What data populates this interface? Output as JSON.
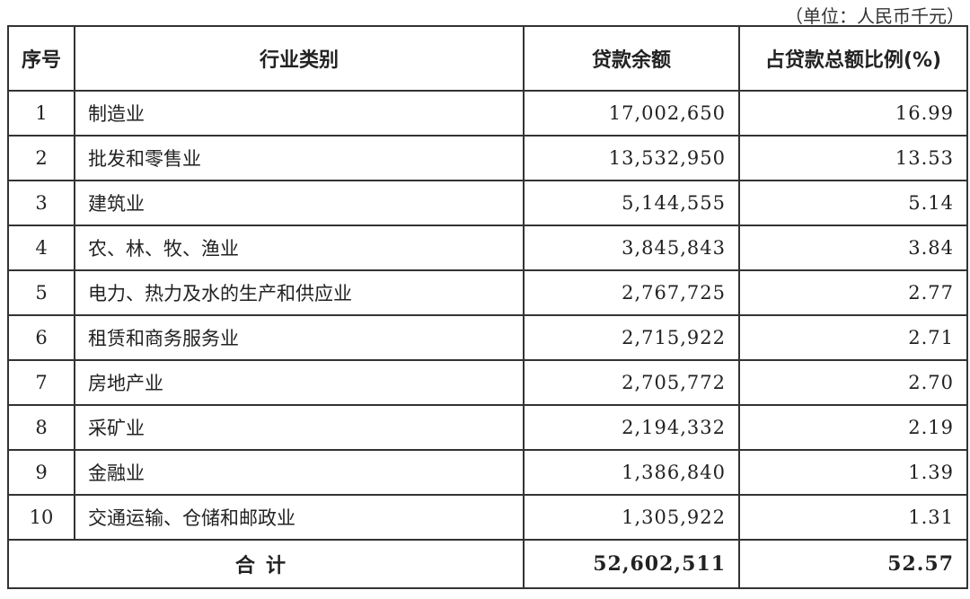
{
  "unit_note": "（单位：人民币千元）",
  "table": {
    "headers": [
      "序号",
      "行业类别",
      "贷款余额",
      "占贷款总额比例(%)"
    ],
    "rows": [
      [
        "1",
        "制造业",
        "17,002,650",
        "16.99"
      ],
      [
        "2",
        "批发和零售业",
        "13,532,950",
        "13.53"
      ],
      [
        "3",
        "建筑业",
        "5,144,555",
        "5.14"
      ],
      [
        "4",
        "农、林、牧、渔业",
        "3,845,843",
        "3.84"
      ],
      [
        "5",
        "电力、热力及水的生产和供应业",
        "2,767,725",
        "2.77"
      ],
      [
        "6",
        "租赁和商务服务业",
        "2,715,922",
        "2.71"
      ],
      [
        "7",
        "房地产业",
        "2,705,772",
        "2.70"
      ],
      [
        "8",
        "采矿业",
        "2,194,332",
        "2.19"
      ],
      [
        "9",
        "金融业",
        "1,386,840",
        "1.39"
      ],
      [
        "10",
        "交通运输、仓储和邮政业",
        "1,305,922",
        "1.31"
      ]
    ],
    "total": {
      "label": "合计",
      "amount": "52,602,511",
      "ratio": "52.57"
    }
  }
}
